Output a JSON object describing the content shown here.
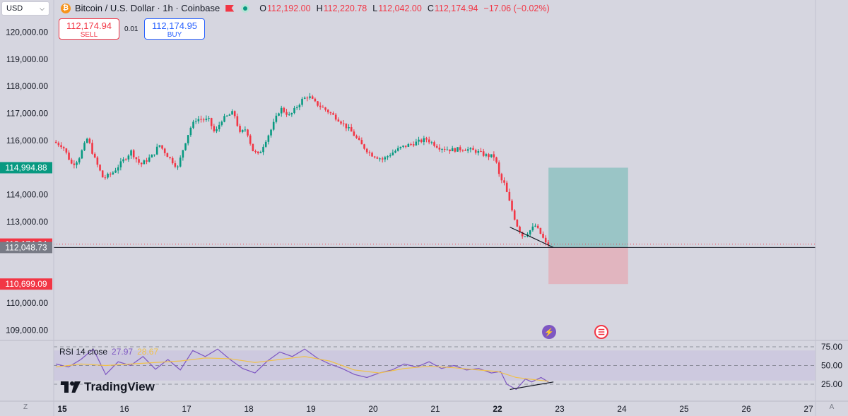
{
  "header": {
    "currency_select": "USD",
    "symbol_title": "Bitcoin / U.S. Dollar · 1h · Coinbase",
    "btc_glyph": "₿",
    "ohlc": {
      "o_label": "O",
      "o_value": "112,192.00",
      "h_label": "H",
      "h_value": "112,220.78",
      "l_label": "L",
      "l_value": "112,042.00",
      "c_label": "C",
      "c_value": "112,174.94",
      "change": "−17.06 (−0.02%)"
    }
  },
  "trade": {
    "sell_price": "112,174.94",
    "sell_label": "SELL",
    "buy_price": "112,174.95",
    "buy_label": "BUY",
    "spread": "0.01"
  },
  "branding": {
    "logo_text": "TradingView"
  },
  "rsi": {
    "label": "RSI 14 close",
    "value_rsi": "27.97",
    "value_ma": "28.67"
  },
  "corner": {
    "left": "Z",
    "right": "A"
  },
  "colors": {
    "up": "#089981",
    "down": "#f23645",
    "rsi_line": "#7e57c2",
    "rsi_ma": "#f0c14b",
    "target_zone": "#9ac5c6",
    "stop_zone": "#e1b5bf",
    "current_price": "#f23645",
    "entry_line": "#131722"
  },
  "chart_data": [
    {
      "type": "candlestick",
      "series_name": "Bitcoin / U.S. Dollar · 1h · Coinbase",
      "x_tick_labels": [
        "15",
        "16",
        "17",
        "18",
        "19",
        "20",
        "21",
        "22",
        "23",
        "24",
        "25",
        "26",
        "27"
      ],
      "y_tick_labels": [
        "120,000.00",
        "119,000.00",
        "118,000.00",
        "117,000.00",
        "116,000.00",
        "114,000.00",
        "113,000.00",
        "110,000.00",
        "109,000.00"
      ],
      "y_ticks": [
        120000,
        119000,
        118000,
        117000,
        116000,
        114000,
        113000,
        110000,
        109000
      ],
      "ylim": [
        108700,
        120700
      ],
      "xlim": [
        14.9,
        27.2
      ],
      "price_path": [
        [
          14.9,
          115950
        ],
        [
          15.05,
          115800
        ],
        [
          15.2,
          115100
        ],
        [
          15.3,
          115300
        ],
        [
          15.45,
          116100
        ],
        [
          15.55,
          115400
        ],
        [
          15.7,
          114600
        ],
        [
          15.85,
          114800
        ],
        [
          16.0,
          115200
        ],
        [
          16.15,
          115600
        ],
        [
          16.3,
          115100
        ],
        [
          16.5,
          115450
        ],
        [
          16.6,
          115850
        ],
        [
          16.75,
          115400
        ],
        [
          16.9,
          115000
        ],
        [
          17.0,
          115800
        ],
        [
          17.1,
          116450
        ],
        [
          17.2,
          116800
        ],
        [
          17.4,
          116750
        ],
        [
          17.5,
          116250
        ],
        [
          17.6,
          116750
        ],
        [
          17.8,
          117050
        ],
        [
          17.9,
          116250
        ],
        [
          18.0,
          116450
        ],
        [
          18.1,
          115650
        ],
        [
          18.2,
          115450
        ],
        [
          18.3,
          115950
        ],
        [
          18.4,
          116400
        ],
        [
          18.55,
          117200
        ],
        [
          18.7,
          116900
        ],
        [
          18.9,
          117500
        ],
        [
          19.0,
          117650
        ],
        [
          19.1,
          117400
        ],
        [
          19.3,
          117100
        ],
        [
          19.5,
          116750
        ],
        [
          19.7,
          116300
        ],
        [
          19.85,
          115850
        ],
        [
          20.0,
          115500
        ],
        [
          20.2,
          115300
        ],
        [
          20.35,
          115550
        ],
        [
          20.5,
          115750
        ],
        [
          20.7,
          115900
        ],
        [
          20.9,
          116050
        ],
        [
          21.1,
          115750
        ],
        [
          21.3,
          115650
        ],
        [
          21.5,
          115700
        ],
        [
          21.7,
          115600
        ],
        [
          21.85,
          115450
        ],
        [
          22.0,
          115400
        ],
        [
          22.08,
          114600
        ],
        [
          22.15,
          114400
        ],
        [
          22.25,
          113600
        ],
        [
          22.35,
          112900
        ],
        [
          22.45,
          112450
        ],
        [
          22.55,
          112650
        ],
        [
          22.65,
          112850
        ],
        [
          22.75,
          112500
        ],
        [
          22.82,
          112175
        ]
      ],
      "horizontal_lines": [
        {
          "label": "112,174.94",
          "value": 112174.94,
          "style": "dotted",
          "color": "#f23645"
        },
        {
          "label": "112,048.73",
          "value": 112048.73,
          "style": "solid",
          "color": "#131722"
        }
      ],
      "price_labels": [
        {
          "label": "114,994.88",
          "value": 114994.88,
          "color": "#089981"
        },
        {
          "label": "110,699.09",
          "value": 110699.09,
          "color": "#f23645"
        }
      ],
      "long_position": {
        "x_start": 22.82,
        "x_end": 24.1,
        "entry": 112048.73,
        "target": 114994.88,
        "stop": 110699.09
      },
      "trendline": {
        "from": [
          22.2,
          112800
        ],
        "to": [
          22.9,
          112050
        ]
      }
    },
    {
      "type": "line",
      "indicator": "RSI 14 close",
      "y_tick_labels": [
        "75.00",
        "50.00",
        "25.00"
      ],
      "y_ticks": [
        75,
        50,
        25
      ],
      "ylim": [
        10,
        80
      ],
      "band": [
        30,
        70
      ],
      "series": [
        {
          "key": "rsi",
          "values": [
            [
              14.9,
              52
            ],
            [
              15.1,
              48
            ],
            [
              15.3,
              58
            ],
            [
              15.5,
              72
            ],
            [
              15.7,
              38
            ],
            [
              15.9,
              55
            ],
            [
              16.1,
              50
            ],
            [
              16.3,
              62
            ],
            [
              16.5,
              45
            ],
            [
              16.7,
              58
            ],
            [
              16.9,
              44
            ],
            [
              17.1,
              70
            ],
            [
              17.3,
              62
            ],
            [
              17.5,
              72
            ],
            [
              17.7,
              58
            ],
            [
              17.9,
              46
            ],
            [
              18.1,
              40
            ],
            [
              18.3,
              56
            ],
            [
              18.5,
              68
            ],
            [
              18.7,
              62
            ],
            [
              18.9,
              72
            ],
            [
              19.1,
              60
            ],
            [
              19.3,
              52
            ],
            [
              19.5,
              46
            ],
            [
              19.7,
              38
            ],
            [
              19.9,
              34
            ],
            [
              20.1,
              40
            ],
            [
              20.3,
              44
            ],
            [
              20.5,
              52
            ],
            [
              20.7,
              48
            ],
            [
              20.9,
              55
            ],
            [
              21.1,
              46
            ],
            [
              21.3,
              50
            ],
            [
              21.5,
              44
            ],
            [
              21.7,
              46
            ],
            [
              21.9,
              40
            ],
            [
              22.05,
              42
            ],
            [
              22.15,
              25
            ],
            [
              22.3,
              18
            ],
            [
              22.45,
              32
            ],
            [
              22.55,
              28
            ],
            [
              22.7,
              34
            ],
            [
              22.82,
              28
            ]
          ]
        },
        {
          "key": "ma",
          "values": [
            [
              14.9,
              48
            ],
            [
              15.3,
              52
            ],
            [
              15.7,
              50
            ],
            [
              16.1,
              52
            ],
            [
              16.5,
              54
            ],
            [
              16.9,
              56
            ],
            [
              17.3,
              60
            ],
            [
              17.7,
              59
            ],
            [
              18.1,
              54
            ],
            [
              18.5,
              58
            ],
            [
              18.9,
              62
            ],
            [
              19.3,
              56
            ],
            [
              19.7,
              44
            ],
            [
              20.1,
              40
            ],
            [
              20.5,
              46
            ],
            [
              20.9,
              49
            ],
            [
              21.3,
              47
            ],
            [
              21.7,
              44
            ],
            [
              22.0,
              42
            ],
            [
              22.3,
              34
            ],
            [
              22.6,
              31
            ],
            [
              22.82,
              29
            ]
          ]
        }
      ],
      "trendline": {
        "from": [
          22.2,
          18
        ],
        "to": [
          22.9,
          28
        ]
      }
    }
  ]
}
